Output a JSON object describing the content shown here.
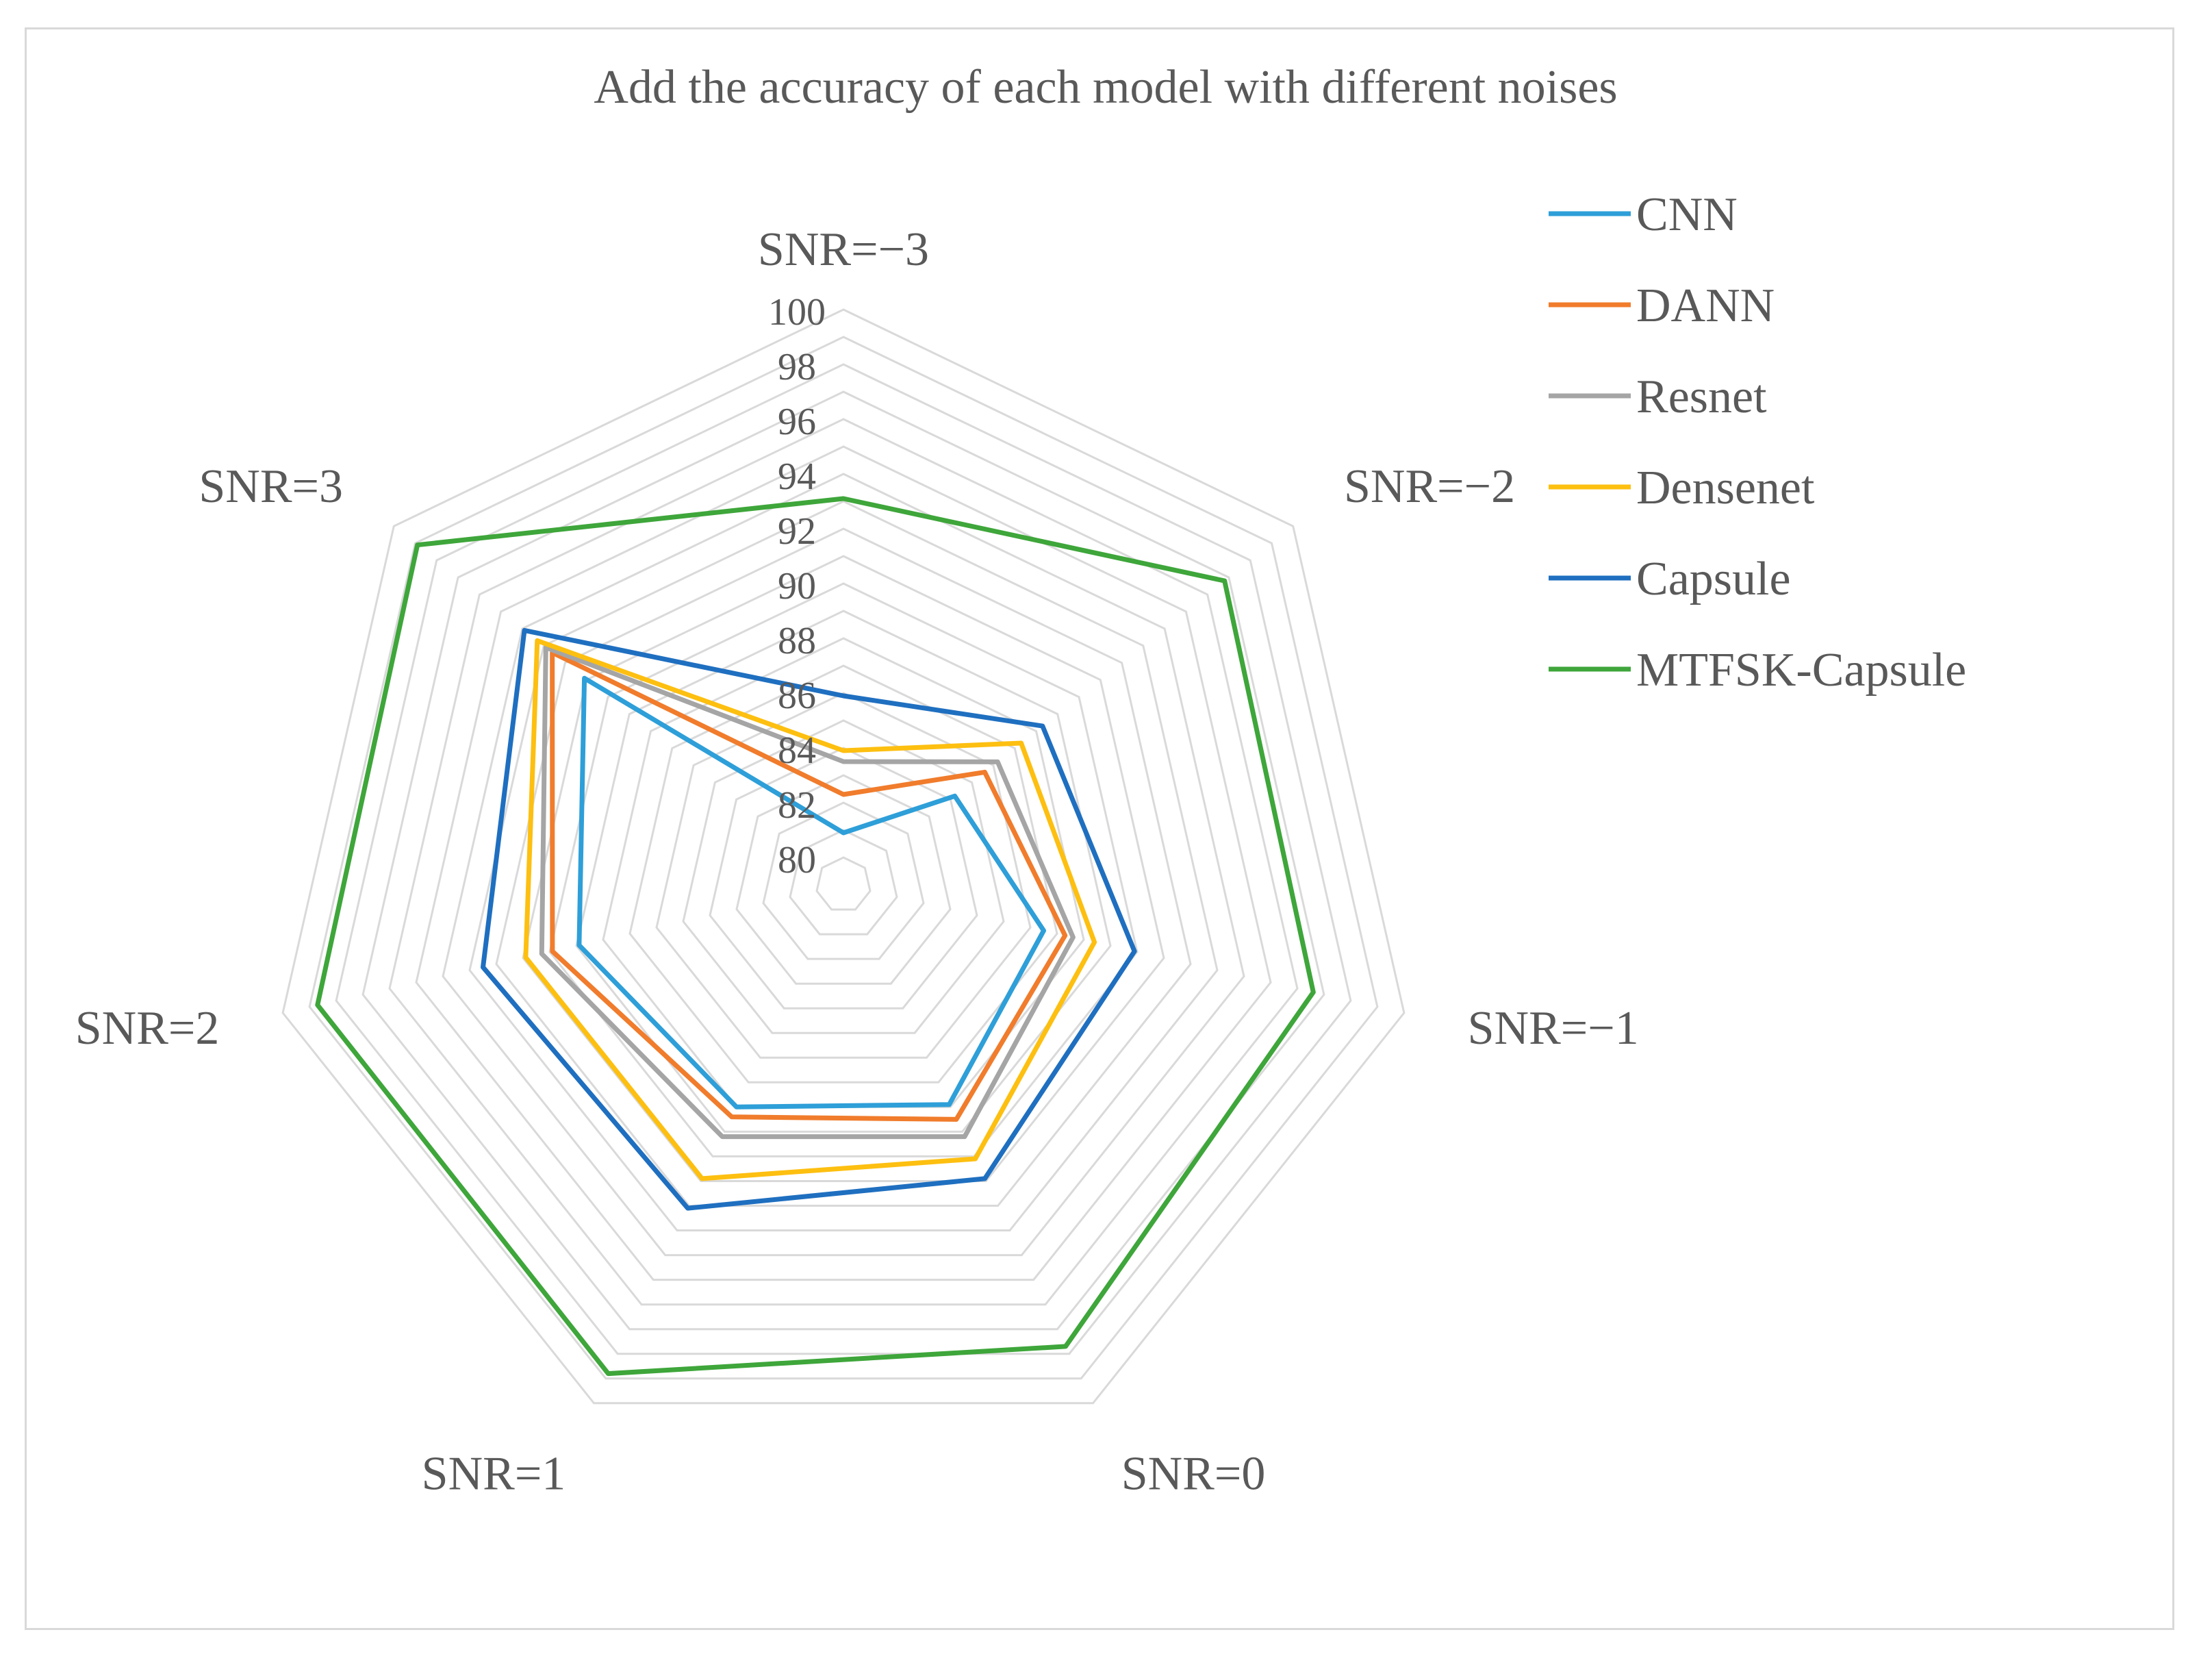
{
  "chart_data": {
    "type": "radar",
    "title": "Add the accuracy of each model with different noises",
    "categories": [
      "SNR=−3",
      "SNR=−2",
      "SNR=−1",
      "SNR=0",
      "SNR=1",
      "SNR=2",
      "SNR=3"
    ],
    "r_min": 79,
    "r_max": 100,
    "tick_labels": [
      "80",
      "82",
      "84",
      "86",
      "88",
      "90",
      "92",
      "94",
      "96",
      "98",
      "100"
    ],
    "tick_values": [
      80,
      82,
      84,
      86,
      88,
      90,
      92,
      94,
      96,
      98,
      100
    ],
    "grid_step": 1,
    "legend_position": "right",
    "series": [
      {
        "name": "CNN",
        "color": "#2e9fd8",
        "values": [
          80.9,
          84.2,
          86.5,
          87.9,
          88.0,
          88.9,
          91.1
        ]
      },
      {
        "name": "DANN",
        "color": "#f07c2c",
        "values": [
          82.3,
          85.6,
          87.3,
          88.5,
          88.4,
          89.9,
          92.6
        ]
      },
      {
        "name": "Resnet",
        "color": "#a5a5a5",
        "values": [
          83.5,
          86.2,
          87.6,
          89.2,
          89.2,
          90.3,
          92.9
        ]
      },
      {
        "name": "Densenet",
        "color": "#fdbf10",
        "values": [
          83.9,
          87.3,
          88.4,
          90.1,
          90.9,
          90.9,
          93.3
        ]
      },
      {
        "name": "Capsule",
        "color": "#1f6fc0",
        "values": [
          85.9,
          88.3,
          89.9,
          90.9,
          92.1,
          92.5,
          93.9
        ]
      },
      {
        "name": "MTFSK-Capsule",
        "color": "#3ea63a",
        "values": [
          93.1,
          96.8,
          96.6,
          97.7,
          98.8,
          98.7,
          98.9
        ]
      }
    ]
  }
}
